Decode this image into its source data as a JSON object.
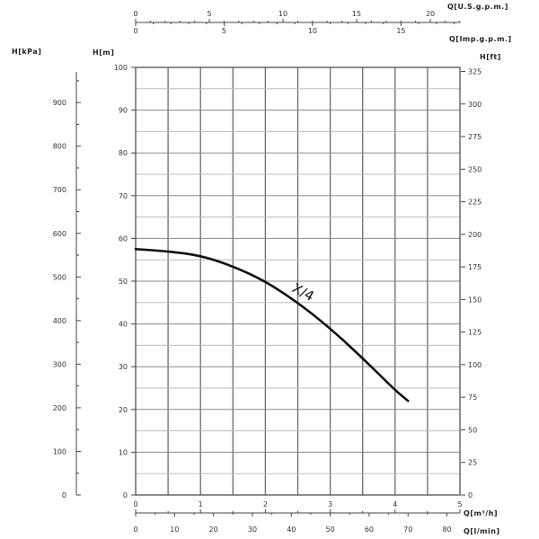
{
  "chart_data": {
    "type": "line",
    "series": [
      {
        "name": "X/4",
        "x": [
          0,
          0.5,
          1.0,
          1.5,
          2.0,
          2.5,
          3.0,
          3.5,
          4.0,
          4.2
        ],
        "y": [
          57.5,
          57.0,
          56.0,
          53.5,
          50.0,
          45.0,
          39.0,
          32.0,
          24.5,
          22.0
        ]
      }
    ],
    "x_axis": {
      "label": "Q[m³/h]",
      "range": [
        0,
        5
      ],
      "ticks": [
        "0",
        "1",
        "2",
        "3",
        "4",
        "5"
      ]
    },
    "x_axis_lmin": {
      "label": "Q[l/min]",
      "range": [
        0,
        83.33
      ],
      "ticks": [
        "0",
        "10",
        "20",
        "30",
        "40",
        "50",
        "60",
        "70",
        "80"
      ]
    },
    "x_axis_usgpm": {
      "label": "Q[U.S.g.p.m.]",
      "range": [
        0,
        22.01
      ],
      "ticks": [
        "0",
        "5",
        "10",
        "15",
        "20"
      ]
    },
    "x_axis_impgpm": {
      "label": "Q[Imp.g.p.m.]",
      "range": [
        0,
        18.33
      ],
      "ticks": [
        "0",
        "5",
        "10",
        "15"
      ]
    },
    "y_axis": {
      "label": "H[m]",
      "range": [
        0,
        100
      ],
      "ticks": [
        "0",
        "10",
        "20",
        "30",
        "40",
        "50",
        "60",
        "70",
        "80",
        "90",
        "100"
      ]
    },
    "y_axis_kpa": {
      "label": "H[kPa]",
      "range": [
        0,
        980.7
      ],
      "ticks": [
        "0",
        "100",
        "200",
        "300",
        "400",
        "500",
        "600",
        "700",
        "800",
        "900"
      ]
    },
    "y_axis_ft": {
      "label": "H[ft]",
      "range": [
        0,
        328.1
      ],
      "ticks": [
        "0",
        "25",
        "50",
        "75",
        "100",
        "125",
        "150",
        "175",
        "200",
        "225",
        "250",
        "275",
        "300",
        "325"
      ]
    },
    "grid": true
  }
}
